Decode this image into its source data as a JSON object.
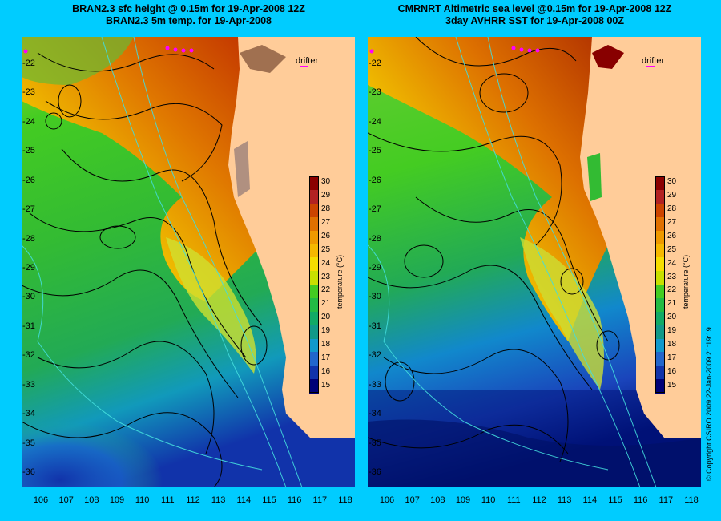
{
  "panels": [
    {
      "id": "left",
      "title_line1": "BRAN2.3 sfc height @ 0.15m for 19-Apr-2008 12Z",
      "title_line2": "BRAN2.3 5m temp. for 19-Apr-2008",
      "drifter_label": "drifter"
    },
    {
      "id": "right",
      "title_line1": "CMRNRT Altimetric sea level  @0.15m  for 19-Apr-2008 12Z",
      "title_line2": "3day AVHRR SST for 19-Apr-2008 00Z",
      "drifter_label": "drifter"
    }
  ],
  "axes": {
    "lat_ticks": [
      "-22",
      "-23",
      "-24",
      "-25",
      "-26",
      "-27",
      "-28",
      "-29",
      "-30",
      "-31",
      "-32",
      "-33",
      "-34",
      "-35",
      "-36"
    ],
    "lon_ticks": [
      "106",
      "107",
      "108",
      "109",
      "110",
      "111",
      "112",
      "113",
      "114",
      "115",
      "116",
      "117",
      "118"
    ]
  },
  "colorbar": {
    "label": "temperature (°C)",
    "ticks": [
      "30",
      "29",
      "28",
      "27",
      "26",
      "25",
      "24",
      "23",
      "22",
      "21",
      "20",
      "19",
      "18",
      "17",
      "16",
      "15"
    ],
    "colors": [
      "#8b0000",
      "#b22222",
      "#cc4400",
      "#e07000",
      "#ee9900",
      "#f5b800",
      "#f5dd00",
      "#c8e000",
      "#44cc22",
      "#22bb44",
      "#11aa66",
      "#119988",
      "#1199cc",
      "#2266cc",
      "#1133aa",
      "#000077"
    ]
  },
  "copyright": "© Copyright CSIRO 2009   22-Jan-2009 21:19:19",
  "colors": {
    "background": "#00ccff",
    "land": "#ffcc99",
    "warm_red": "#c03000",
    "orange": "#e08000",
    "yellow": "#f0d020",
    "green": "#33cc33",
    "cool_blue": "#1a55cc",
    "deep_blue": "#001177"
  }
}
